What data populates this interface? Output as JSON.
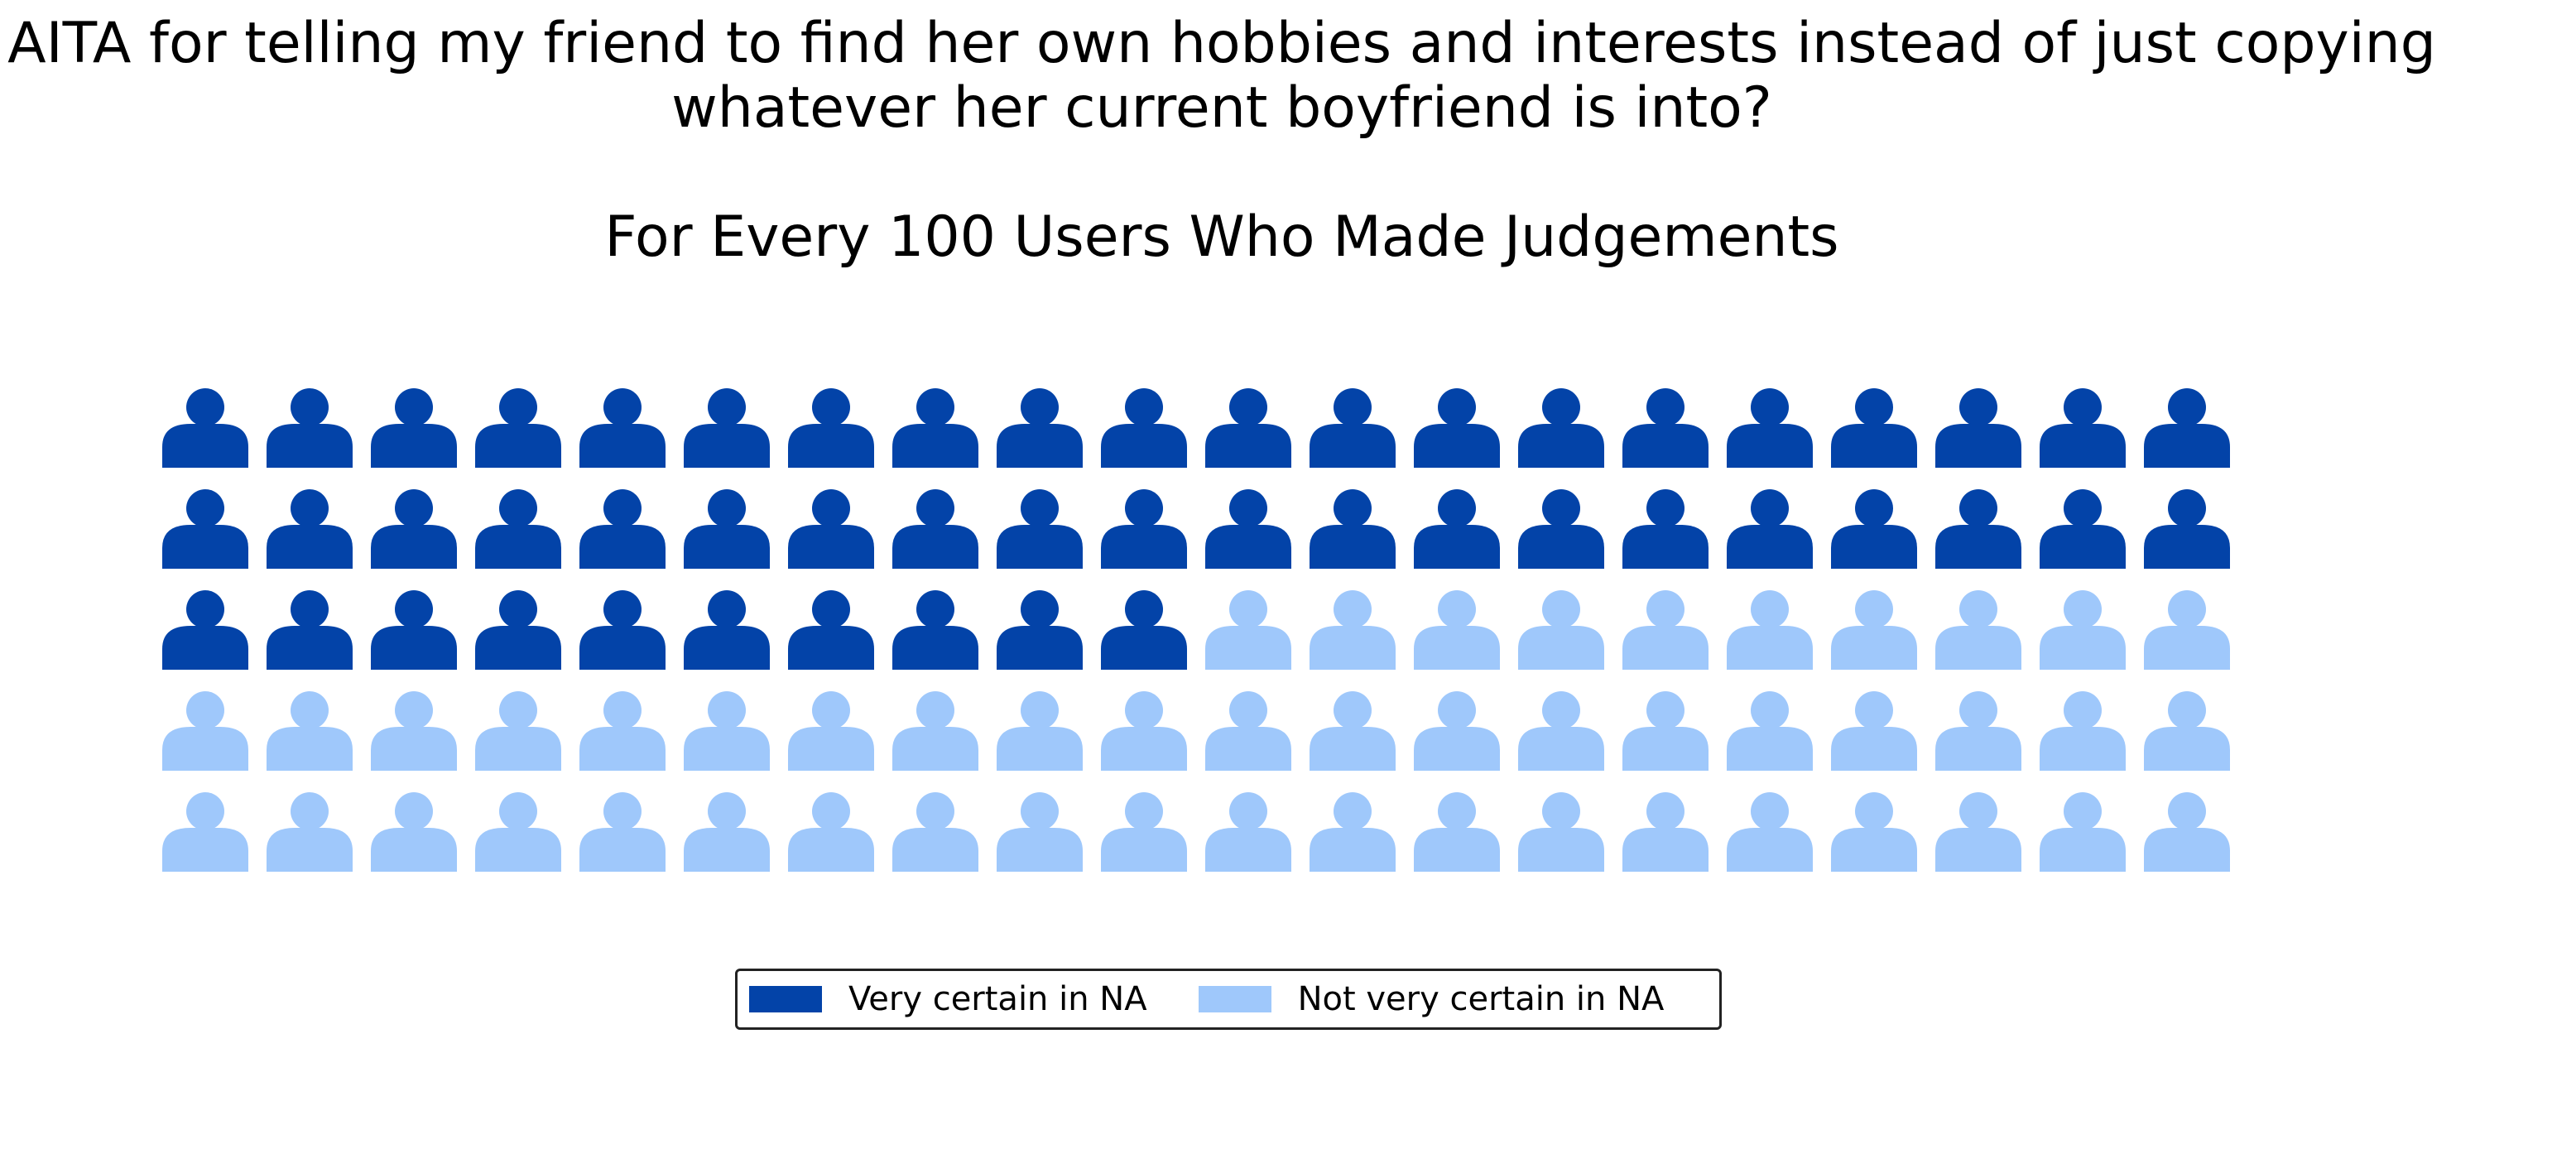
{
  "chart_data": {
    "type": "waffle",
    "title": "AITA for telling my friend to find her own hobbies and interests instead of just copying\nwhatever her current boyfriend is into?",
    "subtitle": "For Every 100 Users Who Made Judgements",
    "rows": 5,
    "columns": 20,
    "total": 100,
    "icon": "person-icon",
    "series": [
      {
        "name": "Very certain in NA",
        "value": 50,
        "color": "#0343a8"
      },
      {
        "name": "Not very certain in NA",
        "value": 50,
        "color": "#9fc8fb"
      }
    ],
    "legend": {
      "position": "bottom-center",
      "entries": [
        "Very certain in NA",
        "Not very certain in NA"
      ]
    }
  }
}
